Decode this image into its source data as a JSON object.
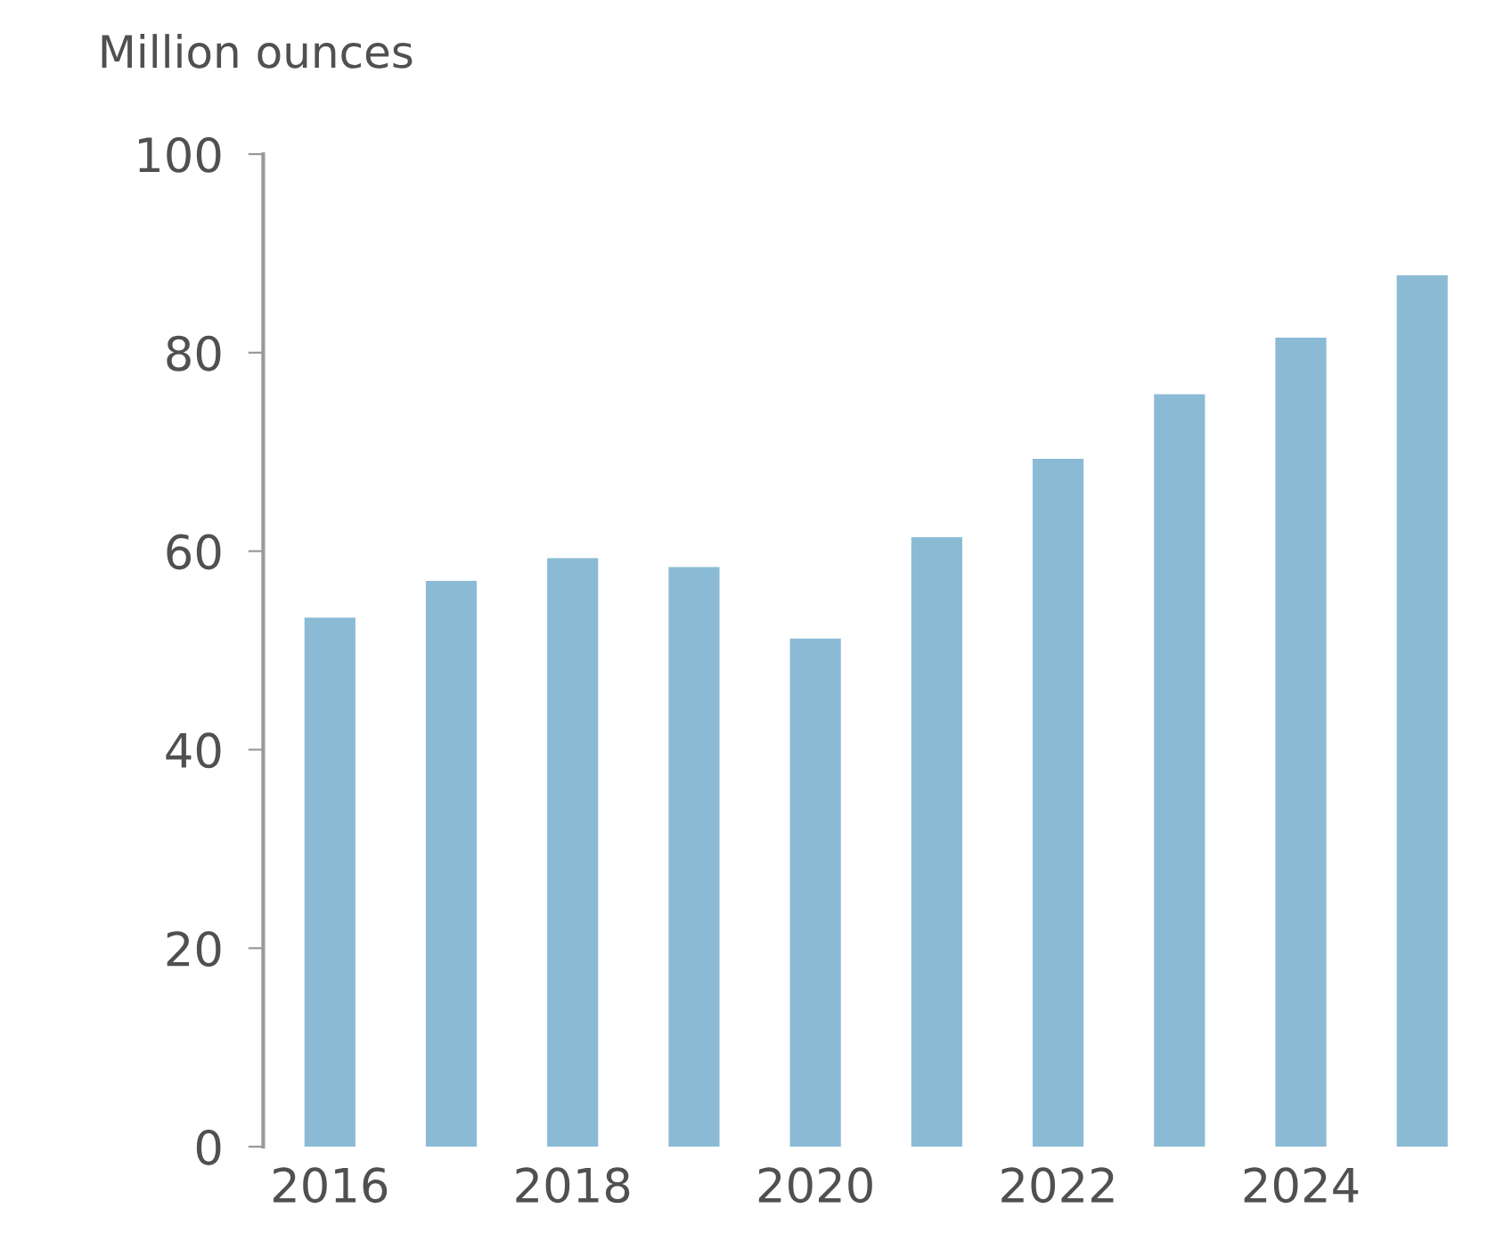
{
  "chart_data": {
    "type": "bar",
    "ylabel": "Million ounces",
    "categories": [
      "2016",
      null,
      "2018",
      null,
      "2020",
      null,
      "2022",
      null,
      "2024",
      null
    ],
    "values": [
      53.3,
      57.0,
      59.3,
      58.4,
      51.2,
      61.4,
      69.3,
      75.8,
      81.5,
      87.8
    ],
    "color": "#8bbbd4",
    "ylim": [
      0,
      100
    ],
    "yticks": [
      0,
      20,
      40,
      60,
      80,
      100
    ],
    "grid": false
  }
}
